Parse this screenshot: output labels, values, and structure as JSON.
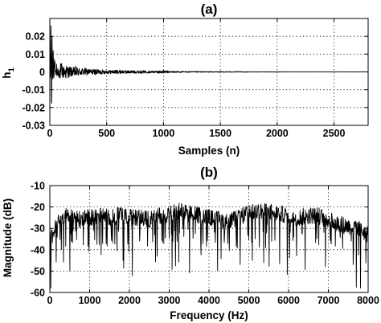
{
  "chart_data": [
    {
      "panel": "(a)",
      "type": "line",
      "title": "(a)",
      "xlabel": "Samples (n)",
      "ylabel": "h1",
      "ylabel_main": "h",
      "ylabel_sub": "1",
      "xlim": [
        0,
        2800
      ],
      "ylim": [
        -0.03,
        0.03
      ],
      "xticks": [
        0,
        500,
        1000,
        1500,
        2000,
        2500
      ],
      "xtick_labels": [
        "0",
        "500",
        "1000",
        "1500",
        "2000",
        "2500"
      ],
      "yticks": [
        -0.03,
        -0.02,
        -0.01,
        0,
        0.01,
        0.02
      ],
      "ytick_labels": [
        "-0.03",
        "-0.02",
        "-0.01",
        "0",
        "0.01",
        "0.02"
      ],
      "grid": true,
      "series": [
        {
          "description": "decaying impulse response",
          "x": [
            0,
            5,
            10,
            15,
            20,
            25,
            30,
            35,
            40,
            50,
            60,
            70,
            80,
            90,
            100,
            120,
            140,
            160,
            180,
            200,
            230,
            260,
            300,
            350,
            400,
            500,
            600,
            700,
            800,
            900,
            1000,
            1050,
            1100,
            1200,
            1400,
            1600,
            1800,
            2000,
            2200,
            2400,
            2600,
            2800
          ],
          "y": [
            0,
            -0.004,
            0.026,
            -0.027,
            0.02,
            -0.008,
            0.012,
            -0.006,
            0.007,
            -0.005,
            0.004,
            -0.003,
            0.003,
            -0.004,
            0.005,
            -0.003,
            0.004,
            -0.003,
            0.003,
            -0.002,
            0.003,
            -0.002,
            0.002,
            -0.0015,
            0.0015,
            -0.001,
            0.001,
            -0.0008,
            0.0007,
            -0.0006,
            0.0008,
            -0.0005,
            0.0004,
            -0.0003,
            0.0002,
            -0.0002,
            0.0001,
            -0.0001,
            5e-05,
            -5e-05,
            3e-05,
            0
          ]
        }
      ]
    },
    {
      "panel": "(b)",
      "type": "line",
      "title": "(b)",
      "xlabel": "Frequency (Hz)",
      "ylabel": "Magnitude (dB)",
      "xlim": [
        0,
        8000
      ],
      "ylim": [
        -60,
        -10
      ],
      "xticks": [
        0,
        1000,
        2000,
        3000,
        4000,
        5000,
        6000,
        7000,
        8000
      ],
      "xtick_labels": [
        "0",
        "1000",
        "2000",
        "3000",
        "4000",
        "5000",
        "6000",
        "7000",
        "8000"
      ],
      "yticks": [
        -60,
        -50,
        -40,
        -30,
        -20,
        -10
      ],
      "ytick_labels": [
        "-60",
        "-50",
        "-40",
        "-30",
        "-20",
        "-10"
      ],
      "grid": true,
      "series": [
        {
          "description": "magnitude response envelope (dense spiky trace)",
          "x": [
            0,
            250,
            500,
            750,
            1000,
            1250,
            1500,
            1750,
            2000,
            2250,
            2500,
            2750,
            3000,
            3250,
            3500,
            3750,
            4000,
            4250,
            4500,
            4750,
            5000,
            5250,
            5500,
            5750,
            6000,
            6250,
            6500,
            6750,
            7000,
            7250,
            7500,
            7750,
            8000
          ],
          "y": [
            -36,
            -25,
            -24,
            -26,
            -25,
            -24,
            -25,
            -24,
            -25,
            -25,
            -26,
            -24,
            -23,
            -22,
            -23,
            -24,
            -25,
            -26,
            -27,
            -25,
            -23,
            -22,
            -22,
            -23,
            -24,
            -25,
            -24,
            -24,
            -26,
            -28,
            -29,
            -30,
            -33
          ]
        }
      ]
    }
  ]
}
